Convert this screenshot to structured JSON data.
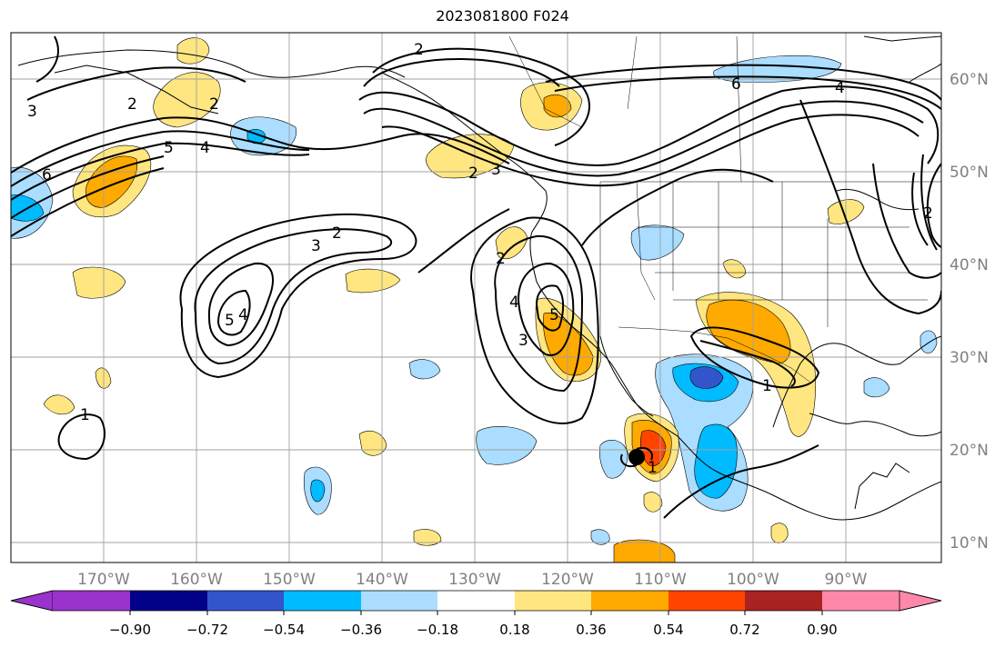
{
  "title": "2023081800 F024",
  "lon_ticks": [
    "170°W",
    "160°W",
    "150°W",
    "140°W",
    "130°W",
    "120°W",
    "110°W",
    "100°W",
    "90°W"
  ],
  "lat_ticks": [
    "60°N",
    "50°N",
    "40°N",
    "30°N",
    "20°N",
    "10°N"
  ],
  "colorbar": {
    "tick_labels": [
      "−0.90",
      "−0.72",
      "−0.54",
      "−0.36",
      "−0.18",
      "0.18",
      "0.36",
      "0.54",
      "0.72",
      "0.90"
    ],
    "colors": [
      "#9933cc",
      "#000088",
      "#3355cc",
      "#00bbff",
      "#aaddff",
      "#ffffff",
      "#ffe680",
      "#ffaa00",
      "#ff4400",
      "#aa2222",
      "#ff88aa"
    ]
  },
  "contour_labels": [
    "2",
    "2",
    "2",
    "2",
    "2",
    "2",
    "2",
    "3",
    "3",
    "3",
    "3",
    "4",
    "4",
    "4",
    "4",
    "5",
    "5",
    "5",
    "6",
    "6",
    "1",
    "1",
    "1"
  ],
  "storm_marker": "tropical-cyclone-symbol"
}
